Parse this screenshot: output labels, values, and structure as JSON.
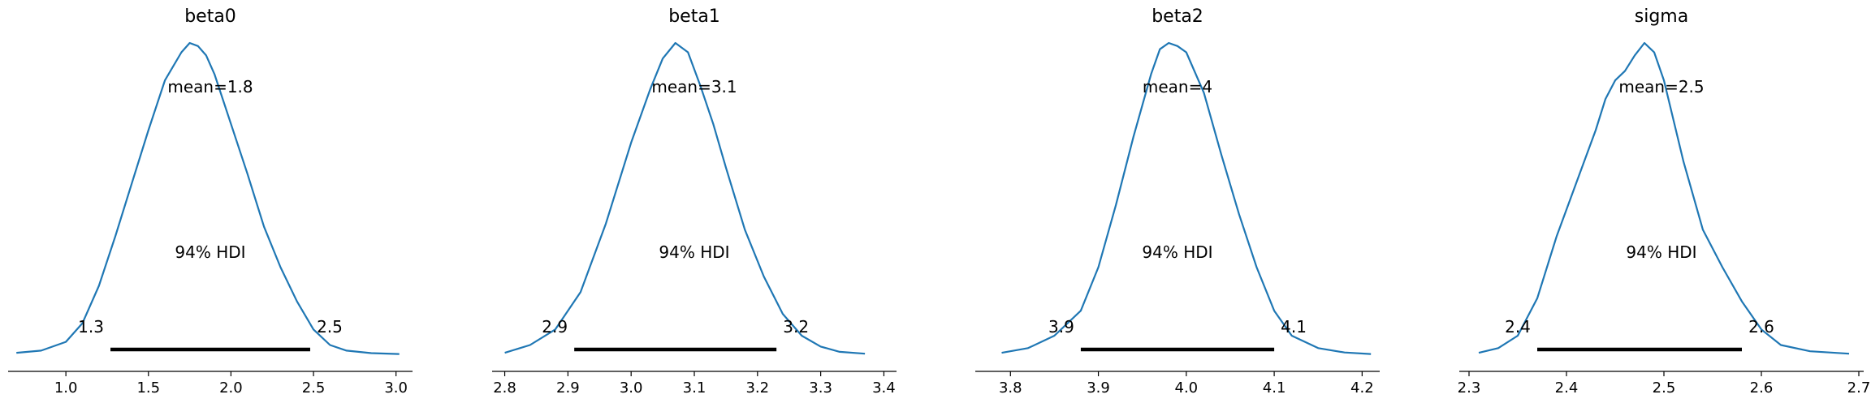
{
  "chart_data": [
    {
      "type": "area",
      "title": "beta0",
      "xlim": [
        0.65,
        3.1
      ],
      "xticks": [
        1.0,
        1.5,
        2.0,
        2.5,
        3.0
      ],
      "xtick_labels": [
        "1.0",
        "1.5",
        "2.0",
        "2.5",
        "3.0"
      ],
      "mean_label": "mean=1.8",
      "hdi_label": "94% HDI",
      "hdi": [
        1.27,
        2.48
      ],
      "hdi_low_label": "1.3",
      "hdi_high_label": "2.5",
      "density": {
        "x": [
          0.7,
          0.85,
          1.0,
          1.1,
          1.2,
          1.3,
          1.4,
          1.5,
          1.6,
          1.7,
          1.75,
          1.8,
          1.85,
          1.9,
          2.0,
          2.1,
          2.2,
          2.3,
          2.4,
          2.5,
          2.6,
          2.7,
          2.85,
          3.02
        ],
        "y": [
          0.005,
          0.012,
          0.04,
          0.1,
          0.22,
          0.38,
          0.55,
          0.72,
          0.88,
          0.97,
          1.0,
          0.99,
          0.96,
          0.9,
          0.74,
          0.58,
          0.41,
          0.28,
          0.17,
          0.08,
          0.03,
          0.012,
          0.004,
          0.001
        ]
      }
    },
    {
      "type": "area",
      "title": "beta1",
      "xlim": [
        2.78,
        3.42
      ],
      "xticks": [
        2.8,
        2.9,
        3.0,
        3.1,
        3.2,
        3.3,
        3.4
      ],
      "xtick_labels": [
        "2.8",
        "2.9",
        "3.0",
        "3.1",
        "3.2",
        "3.3",
        "3.4"
      ],
      "mean_label": "mean=3.1",
      "hdi_label": "94% HDI",
      "hdi": [
        2.91,
        3.23
      ],
      "hdi_low_label": "2.9",
      "hdi_high_label": "3.2",
      "density": {
        "x": [
          2.8,
          2.84,
          2.88,
          2.92,
          2.96,
          3.0,
          3.03,
          3.05,
          3.07,
          3.09,
          3.11,
          3.13,
          3.15,
          3.18,
          3.21,
          3.24,
          3.27,
          3.3,
          3.33,
          3.37
        ],
        "y": [
          0.005,
          0.03,
          0.08,
          0.2,
          0.42,
          0.68,
          0.85,
          0.95,
          1.0,
          0.97,
          0.86,
          0.74,
          0.6,
          0.4,
          0.25,
          0.13,
          0.06,
          0.025,
          0.008,
          0.002
        ]
      }
    },
    {
      "type": "area",
      "title": "beta2",
      "xlim": [
        3.76,
        4.22
      ],
      "xticks": [
        3.8,
        3.9,
        4.0,
        4.1,
        4.2
      ],
      "xtick_labels": [
        "3.8",
        "3.9",
        "4.0",
        "4.1",
        "4.2"
      ],
      "mean_label": "mean=4",
      "hdi_label": "94% HDI",
      "hdi": [
        3.88,
        4.1
      ],
      "hdi_low_label": "3.9",
      "hdi_high_label": "4.1",
      "density": {
        "x": [
          3.79,
          3.82,
          3.85,
          3.88,
          3.9,
          3.92,
          3.94,
          3.96,
          3.97,
          3.98,
          3.99,
          4.0,
          4.02,
          4.04,
          4.06,
          4.08,
          4.1,
          4.12,
          4.15,
          4.18,
          4.21
        ],
        "y": [
          0.005,
          0.02,
          0.06,
          0.14,
          0.28,
          0.48,
          0.7,
          0.9,
          0.98,
          1.0,
          0.99,
          0.97,
          0.84,
          0.64,
          0.45,
          0.28,
          0.14,
          0.06,
          0.02,
          0.006,
          0.001
        ]
      }
    },
    {
      "type": "area",
      "title": "sigma",
      "xlim": [
        2.29,
        2.705
      ],
      "xticks": [
        2.3,
        2.4,
        2.5,
        2.6,
        2.7
      ],
      "xtick_labels": [
        "2.3",
        "2.4",
        "2.5",
        "2.6",
        "2.7"
      ],
      "mean_label": "mean=2.5",
      "hdi_label": "94% HDI",
      "hdi": [
        2.37,
        2.58
      ],
      "hdi_low_label": "2.4",
      "hdi_high_label": "2.6",
      "density": {
        "x": [
          2.31,
          2.33,
          2.35,
          2.37,
          2.39,
          2.41,
          2.43,
          2.44,
          2.45,
          2.46,
          2.47,
          2.48,
          2.49,
          2.5,
          2.52,
          2.54,
          2.56,
          2.58,
          2.6,
          2.62,
          2.65,
          2.69
        ],
        "y": [
          0.005,
          0.02,
          0.06,
          0.18,
          0.38,
          0.55,
          0.72,
          0.82,
          0.88,
          0.91,
          0.96,
          1.0,
          0.97,
          0.88,
          0.62,
          0.4,
          0.28,
          0.17,
          0.08,
          0.03,
          0.01,
          0.002
        ]
      }
    }
  ],
  "colors": {
    "kde": "#1f77b4",
    "hdi_bar": "#000000",
    "axis": "#000000"
  }
}
